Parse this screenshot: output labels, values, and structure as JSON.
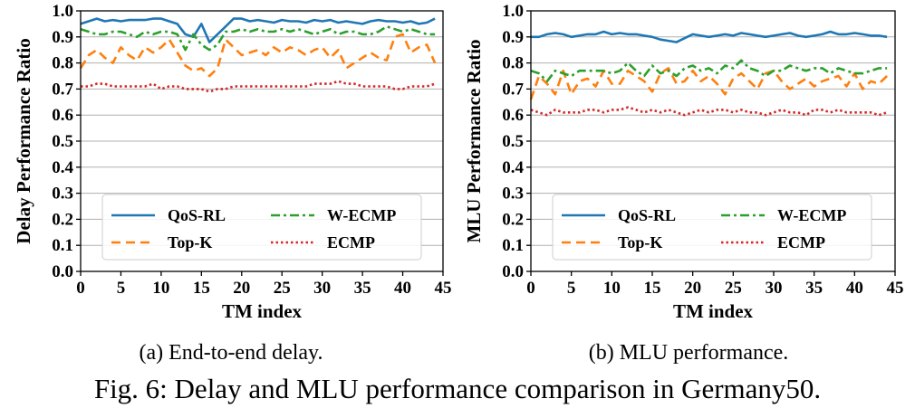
{
  "figure_caption": "Fig. 6: Delay and MLU performance comparison in Germany50.",
  "colors": {
    "QoS-RL": "#1f77b4",
    "Top-K": "#ff7f0e",
    "W-ECMP": "#2ca02c",
    "ECMP": "#d62728"
  },
  "chart_data": [
    {
      "type": "line",
      "caption": "(a) End-to-end delay.",
      "xlabel": "TM index",
      "ylabel": "Delay Performance Ratio",
      "xlim": [
        0,
        45
      ],
      "ylim": [
        0.0,
        1.0
      ],
      "xticks": [
        0,
        5,
        10,
        15,
        20,
        25,
        30,
        35,
        40,
        45
      ],
      "xtick_labels": [
        "0",
        "5",
        "10",
        "15",
        "20",
        "25",
        "30",
        "35",
        "40",
        "45"
      ],
      "yticks": [
        0.0,
        0.1,
        0.2,
        0.3,
        0.4,
        0.5,
        0.6,
        0.7,
        0.8,
        0.9,
        1.0
      ],
      "ytick_labels": [
        "0.0",
        "0.1",
        "0.2",
        "0.3",
        "0.4",
        "0.5",
        "0.6",
        "0.7",
        "0.8",
        "0.9",
        "1.0"
      ],
      "grid": "horizontal",
      "legend_position": "lower-center",
      "x": [
        0,
        1,
        2,
        3,
        4,
        5,
        6,
        7,
        8,
        9,
        10,
        11,
        12,
        13,
        14,
        15,
        16,
        17,
        18,
        19,
        20,
        21,
        22,
        23,
        24,
        25,
        26,
        27,
        28,
        29,
        30,
        31,
        32,
        33,
        34,
        35,
        36,
        37,
        38,
        39,
        40,
        41,
        42,
        43,
        44
      ],
      "series": [
        {
          "name": "QoS-RL",
          "style": "solid",
          "values": [
            0.95,
            0.96,
            0.97,
            0.96,
            0.965,
            0.96,
            0.965,
            0.965,
            0.965,
            0.97,
            0.97,
            0.96,
            0.95,
            0.91,
            0.9,
            0.95,
            0.88,
            0.91,
            0.94,
            0.97,
            0.97,
            0.96,
            0.965,
            0.96,
            0.955,
            0.965,
            0.96,
            0.96,
            0.955,
            0.965,
            0.96,
            0.965,
            0.955,
            0.96,
            0.955,
            0.95,
            0.96,
            0.965,
            0.96,
            0.96,
            0.955,
            0.96,
            0.95,
            0.955,
            0.97
          ]
        },
        {
          "name": "Top-K",
          "style": "dashed",
          "values": [
            0.78,
            0.83,
            0.85,
            0.82,
            0.8,
            0.86,
            0.83,
            0.81,
            0.86,
            0.84,
            0.86,
            0.89,
            0.84,
            0.79,
            0.77,
            0.78,
            0.75,
            0.78,
            0.89,
            0.86,
            0.83,
            0.84,
            0.85,
            0.83,
            0.86,
            0.84,
            0.86,
            0.85,
            0.83,
            0.85,
            0.86,
            0.82,
            0.85,
            0.78,
            0.8,
            0.82,
            0.84,
            0.82,
            0.81,
            0.9,
            0.91,
            0.84,
            0.86,
            0.87,
            0.8
          ]
        },
        {
          "name": "W-ECMP",
          "style": "dashdot",
          "values": [
            0.93,
            0.92,
            0.91,
            0.91,
            0.92,
            0.92,
            0.91,
            0.9,
            0.92,
            0.91,
            0.92,
            0.92,
            0.91,
            0.85,
            0.91,
            0.87,
            0.85,
            0.87,
            0.92,
            0.92,
            0.93,
            0.92,
            0.93,
            0.92,
            0.92,
            0.93,
            0.92,
            0.93,
            0.92,
            0.91,
            0.92,
            0.93,
            0.91,
            0.92,
            0.92,
            0.91,
            0.91,
            0.92,
            0.94,
            0.93,
            0.92,
            0.93,
            0.92,
            0.91,
            0.91
          ]
        },
        {
          "name": "ECMP",
          "style": "dotted",
          "values": [
            0.71,
            0.71,
            0.72,
            0.72,
            0.71,
            0.71,
            0.71,
            0.71,
            0.71,
            0.72,
            0.7,
            0.71,
            0.71,
            0.7,
            0.7,
            0.7,
            0.69,
            0.7,
            0.7,
            0.71,
            0.71,
            0.71,
            0.71,
            0.71,
            0.71,
            0.71,
            0.71,
            0.71,
            0.71,
            0.72,
            0.72,
            0.72,
            0.73,
            0.72,
            0.72,
            0.71,
            0.71,
            0.71,
            0.71,
            0.7,
            0.7,
            0.71,
            0.71,
            0.71,
            0.72
          ]
        }
      ]
    },
    {
      "type": "line",
      "caption": "(b) MLU performance.",
      "xlabel": "TM index",
      "ylabel": "MLU Performance Ratio",
      "xlim": [
        0,
        45
      ],
      "ylim": [
        0.0,
        1.0
      ],
      "xticks": [
        0,
        5,
        10,
        15,
        20,
        25,
        30,
        35,
        40,
        45
      ],
      "xtick_labels": [
        "0",
        "5",
        "10",
        "15",
        "20",
        "25",
        "30",
        "35",
        "40",
        "45"
      ],
      "yticks": [
        0.0,
        0.1,
        0.2,
        0.3,
        0.4,
        0.5,
        0.6,
        0.7,
        0.8,
        0.9,
        1.0
      ],
      "ytick_labels": [
        "0.0",
        "0.1",
        "0.2",
        "0.3",
        "0.4",
        "0.5",
        "0.6",
        "0.7",
        "0.8",
        "0.9",
        "1.0"
      ],
      "grid": "horizontal",
      "legend_position": "lower-center",
      "x": [
        0,
        1,
        2,
        3,
        4,
        5,
        6,
        7,
        8,
        9,
        10,
        11,
        12,
        13,
        14,
        15,
        16,
        17,
        18,
        19,
        20,
        21,
        22,
        23,
        24,
        25,
        26,
        27,
        28,
        29,
        30,
        31,
        32,
        33,
        34,
        35,
        36,
        37,
        38,
        39,
        40,
        41,
        42,
        43,
        44
      ],
      "series": [
        {
          "name": "QoS-RL",
          "style": "solid",
          "values": [
            0.9,
            0.9,
            0.91,
            0.915,
            0.91,
            0.9,
            0.905,
            0.91,
            0.91,
            0.92,
            0.91,
            0.915,
            0.91,
            0.91,
            0.905,
            0.9,
            0.89,
            0.885,
            0.88,
            0.895,
            0.91,
            0.905,
            0.9,
            0.905,
            0.91,
            0.905,
            0.915,
            0.91,
            0.905,
            0.9,
            0.905,
            0.91,
            0.915,
            0.905,
            0.9,
            0.905,
            0.91,
            0.92,
            0.91,
            0.91,
            0.915,
            0.91,
            0.905,
            0.905,
            0.9
          ]
        },
        {
          "name": "Top-K",
          "style": "dashed",
          "values": [
            0.66,
            0.75,
            0.72,
            0.68,
            0.77,
            0.68,
            0.73,
            0.74,
            0.71,
            0.77,
            0.72,
            0.72,
            0.77,
            0.75,
            0.73,
            0.69,
            0.76,
            0.78,
            0.72,
            0.73,
            0.77,
            0.73,
            0.75,
            0.72,
            0.68,
            0.74,
            0.76,
            0.73,
            0.7,
            0.76,
            0.77,
            0.73,
            0.7,
            0.72,
            0.74,
            0.71,
            0.73,
            0.74,
            0.75,
            0.71,
            0.76,
            0.7,
            0.73,
            0.72,
            0.75
          ]
        },
        {
          "name": "W-ECMP",
          "style": "dashdot",
          "values": [
            0.77,
            0.76,
            0.73,
            0.77,
            0.76,
            0.75,
            0.77,
            0.77,
            0.77,
            0.77,
            0.76,
            0.77,
            0.8,
            0.77,
            0.75,
            0.79,
            0.76,
            0.77,
            0.75,
            0.78,
            0.79,
            0.77,
            0.78,
            0.76,
            0.79,
            0.78,
            0.81,
            0.78,
            0.77,
            0.75,
            0.77,
            0.77,
            0.79,
            0.78,
            0.77,
            0.78,
            0.78,
            0.76,
            0.78,
            0.77,
            0.76,
            0.76,
            0.77,
            0.78,
            0.78
          ]
        },
        {
          "name": "ECMP",
          "style": "dotted",
          "values": [
            0.62,
            0.61,
            0.6,
            0.62,
            0.61,
            0.61,
            0.61,
            0.62,
            0.62,
            0.61,
            0.62,
            0.62,
            0.63,
            0.62,
            0.61,
            0.62,
            0.61,
            0.62,
            0.61,
            0.6,
            0.61,
            0.62,
            0.61,
            0.62,
            0.62,
            0.61,
            0.62,
            0.61,
            0.61,
            0.6,
            0.61,
            0.62,
            0.61,
            0.61,
            0.6,
            0.62,
            0.62,
            0.61,
            0.62,
            0.61,
            0.61,
            0.61,
            0.61,
            0.6,
            0.61
          ]
        }
      ]
    }
  ]
}
